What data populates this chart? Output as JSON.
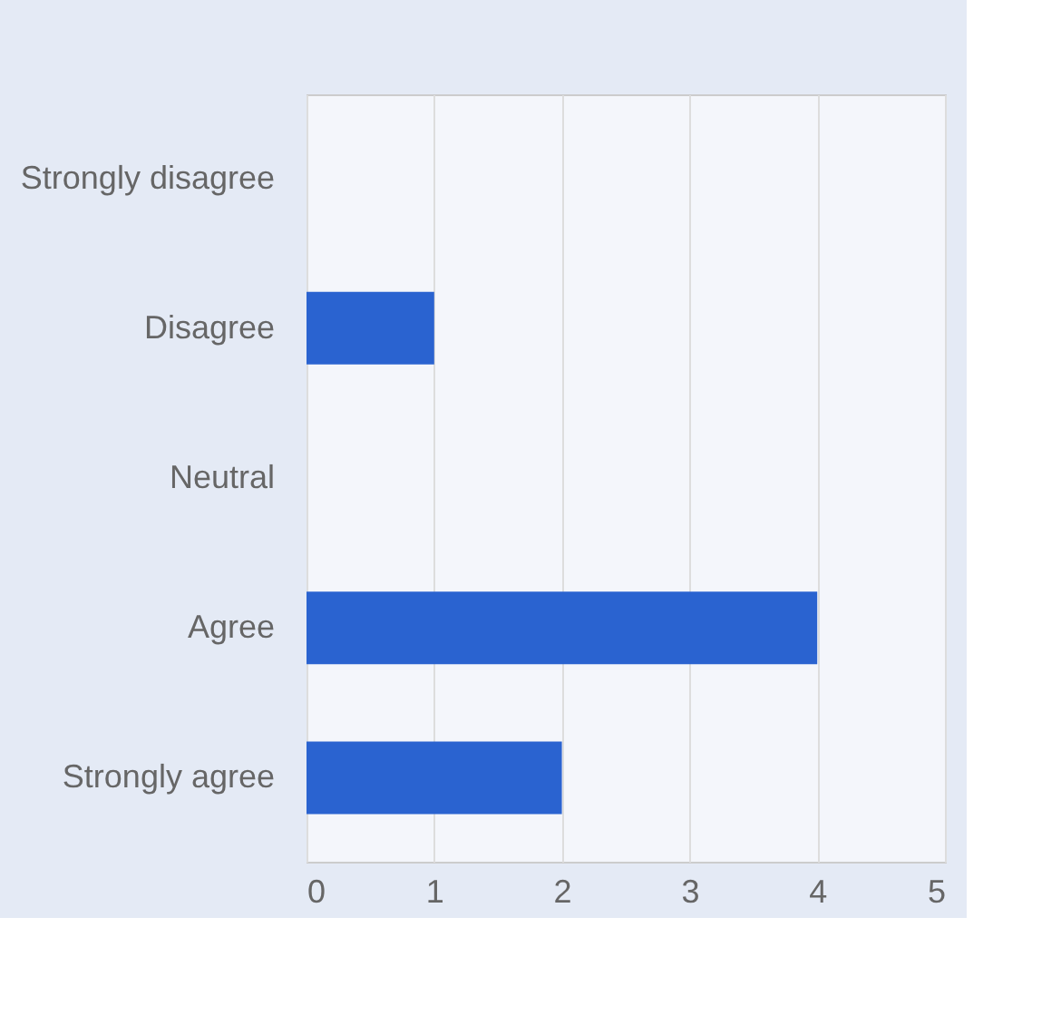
{
  "chart_data": {
    "type": "bar",
    "orientation": "horizontal",
    "categories": [
      "Strongly disagree",
      "Disagree",
      "Neutral",
      "Agree",
      "Strongly agree"
    ],
    "series": [
      {
        "color": "#2a63d0",
        "values": [
          0,
          1,
          0,
          4,
          2
        ]
      }
    ],
    "xlim": [
      0,
      5
    ],
    "xticks": [
      0,
      1,
      2,
      3,
      4,
      5
    ],
    "grid": "x"
  }
}
